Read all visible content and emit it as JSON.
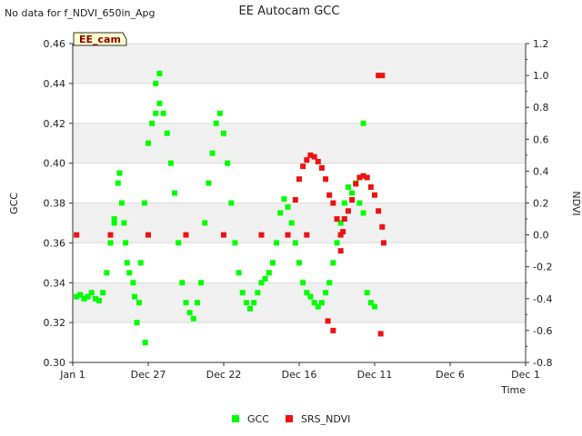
{
  "chart_data": {
    "type": "scatter",
    "title": "EE Autocam GCC",
    "no_data_note": "No data for f_NDVI_650in_Apg",
    "badge": "EE_cam",
    "xlabel": "Time",
    "ylabel_left": "GCC",
    "ylabel_right": "NDVI",
    "x_tick_labels": [
      "Jan 1",
      "Dec 27",
      "Dec 22",
      "Dec 16",
      "Dec 11",
      "Dec 6",
      "Dec 1"
    ],
    "y_left_ticks": [
      "0.30",
      "0.32",
      "0.34",
      "0.36",
      "0.38",
      "0.40",
      "0.42",
      "0.44",
      "0.46"
    ],
    "y_right_ticks": [
      "-0.8",
      "-0.6",
      "-0.4",
      "-0.2",
      "0.0",
      "0.2",
      "0.4",
      "0.6",
      "0.8",
      "1.0",
      "1.2"
    ],
    "ylim_left": [
      0.3,
      0.46
    ],
    "ylim_right": [
      -0.8,
      1.2
    ],
    "xlim": [
      0,
      6
    ],
    "legend": [
      "GCC",
      "SRS_NDVI"
    ],
    "colors": {
      "GCC": "#00ff00",
      "SRS_NDVI": "#ee1111",
      "band": "#f0f0f0",
      "grid": "#dddddd"
    },
    "series": [
      {
        "name": "GCC",
        "axis": "left",
        "points": [
          [
            0.05,
            0.333
          ],
          [
            0.1,
            0.334
          ],
          [
            0.15,
            0.332
          ],
          [
            0.2,
            0.333
          ],
          [
            0.25,
            0.335
          ],
          [
            0.3,
            0.332
          ],
          [
            0.35,
            0.331
          ],
          [
            0.4,
            0.335
          ],
          [
            0.45,
            0.345
          ],
          [
            0.5,
            0.36
          ],
          [
            0.55,
            0.372
          ],
          [
            0.6,
            0.39
          ],
          [
            0.62,
            0.395
          ],
          [
            0.65,
            0.38
          ],
          [
            0.68,
            0.37
          ],
          [
            0.7,
            0.36
          ],
          [
            0.72,
            0.35
          ],
          [
            0.75,
            0.345
          ],
          [
            0.8,
            0.34
          ],
          [
            0.82,
            0.333
          ],
          [
            0.85,
            0.32
          ],
          [
            0.88,
            0.33
          ],
          [
            0.9,
            0.35
          ],
          [
            0.95,
            0.38
          ],
          [
            1.0,
            0.41
          ],
          [
            1.05,
            0.42
          ],
          [
            1.1,
            0.425
          ],
          [
            1.15,
            0.43
          ],
          [
            1.2,
            0.425
          ],
          [
            1.25,
            0.415
          ],
          [
            1.3,
            0.4
          ],
          [
            1.35,
            0.385
          ],
          [
            1.4,
            0.36
          ],
          [
            1.45,
            0.34
          ],
          [
            1.5,
            0.33
          ],
          [
            1.55,
            0.325
          ],
          [
            1.6,
            0.322
          ],
          [
            1.65,
            0.33
          ],
          [
            1.7,
            0.34
          ],
          [
            1.75,
            0.37
          ],
          [
            1.8,
            0.39
          ],
          [
            1.85,
            0.405
          ],
          [
            1.9,
            0.42
          ],
          [
            1.95,
            0.425
          ],
          [
            2.0,
            0.415
          ],
          [
            2.05,
            0.4
          ],
          [
            2.1,
            0.38
          ],
          [
            2.15,
            0.36
          ],
          [
            2.2,
            0.345
          ],
          [
            2.25,
            0.335
          ],
          [
            2.3,
            0.33
          ],
          [
            2.35,
            0.327
          ],
          [
            2.4,
            0.33
          ],
          [
            2.45,
            0.335
          ],
          [
            2.5,
            0.34
          ],
          [
            2.55,
            0.342
          ],
          [
            2.6,
            0.345
          ],
          [
            2.65,
            0.35
          ],
          [
            2.7,
            0.36
          ],
          [
            2.75,
            0.375
          ],
          [
            2.8,
            0.382
          ],
          [
            2.85,
            0.378
          ],
          [
            2.9,
            0.37
          ],
          [
            2.95,
            0.36
          ],
          [
            3.0,
            0.35
          ],
          [
            3.05,
            0.34
          ],
          [
            3.1,
            0.335
          ],
          [
            3.15,
            0.333
          ],
          [
            3.2,
            0.33
          ],
          [
            3.25,
            0.328
          ],
          [
            3.3,
            0.33
          ],
          [
            3.35,
            0.335
          ],
          [
            3.4,
            0.34
          ],
          [
            3.45,
            0.35
          ],
          [
            3.5,
            0.36
          ],
          [
            3.55,
            0.37
          ],
          [
            3.6,
            0.38
          ],
          [
            3.65,
            0.388
          ],
          [
            3.7,
            0.385
          ],
          [
            3.75,
            0.39
          ],
          [
            3.8,
            0.38
          ],
          [
            3.85,
            0.375
          ],
          [
            3.9,
            0.335
          ],
          [
            3.95,
            0.33
          ],
          [
            4.0,
            0.328
          ],
          [
            0.55,
            0.37
          ],
          [
            1.1,
            0.44
          ],
          [
            1.15,
            0.445
          ],
          [
            0.96,
            0.31
          ],
          [
            3.85,
            0.42
          ]
        ]
      },
      {
        "name": "SRS_NDVI",
        "axis": "right",
        "points": [
          [
            0.05,
            0.0
          ],
          [
            0.5,
            0.0
          ],
          [
            1.0,
            0.0
          ],
          [
            1.5,
            0.0
          ],
          [
            2.0,
            0.0
          ],
          [
            2.5,
            0.0
          ],
          [
            2.85,
            0.0
          ],
          [
            3.1,
            0.0
          ],
          [
            3.55,
            0.0
          ],
          [
            2.95,
            0.22
          ],
          [
            3.0,
            0.35
          ],
          [
            3.05,
            0.43
          ],
          [
            3.1,
            0.47
          ],
          [
            3.15,
            0.5
          ],
          [
            3.2,
            0.49
          ],
          [
            3.25,
            0.46
          ],
          [
            3.3,
            0.42
          ],
          [
            3.35,
            0.35
          ],
          [
            3.4,
            0.25
          ],
          [
            3.45,
            0.2
          ],
          [
            3.5,
            0.1
          ],
          [
            3.55,
            -0.1
          ],
          [
            3.58,
            0.02
          ],
          [
            3.6,
            0.1
          ],
          [
            3.65,
            0.15
          ],
          [
            3.7,
            0.22
          ],
          [
            3.75,
            0.32
          ],
          [
            3.8,
            0.36
          ],
          [
            3.85,
            0.37
          ],
          [
            3.9,
            0.36
          ],
          [
            3.95,
            0.3
          ],
          [
            4.0,
            0.25
          ],
          [
            4.05,
            0.15
          ],
          [
            4.1,
            0.05
          ],
          [
            4.12,
            -0.05
          ],
          [
            3.38,
            -0.54
          ],
          [
            3.45,
            -0.6
          ],
          [
            4.08,
            -0.62
          ],
          [
            4.05,
            1.0
          ],
          [
            4.1,
            1.0
          ]
        ]
      }
    ]
  }
}
